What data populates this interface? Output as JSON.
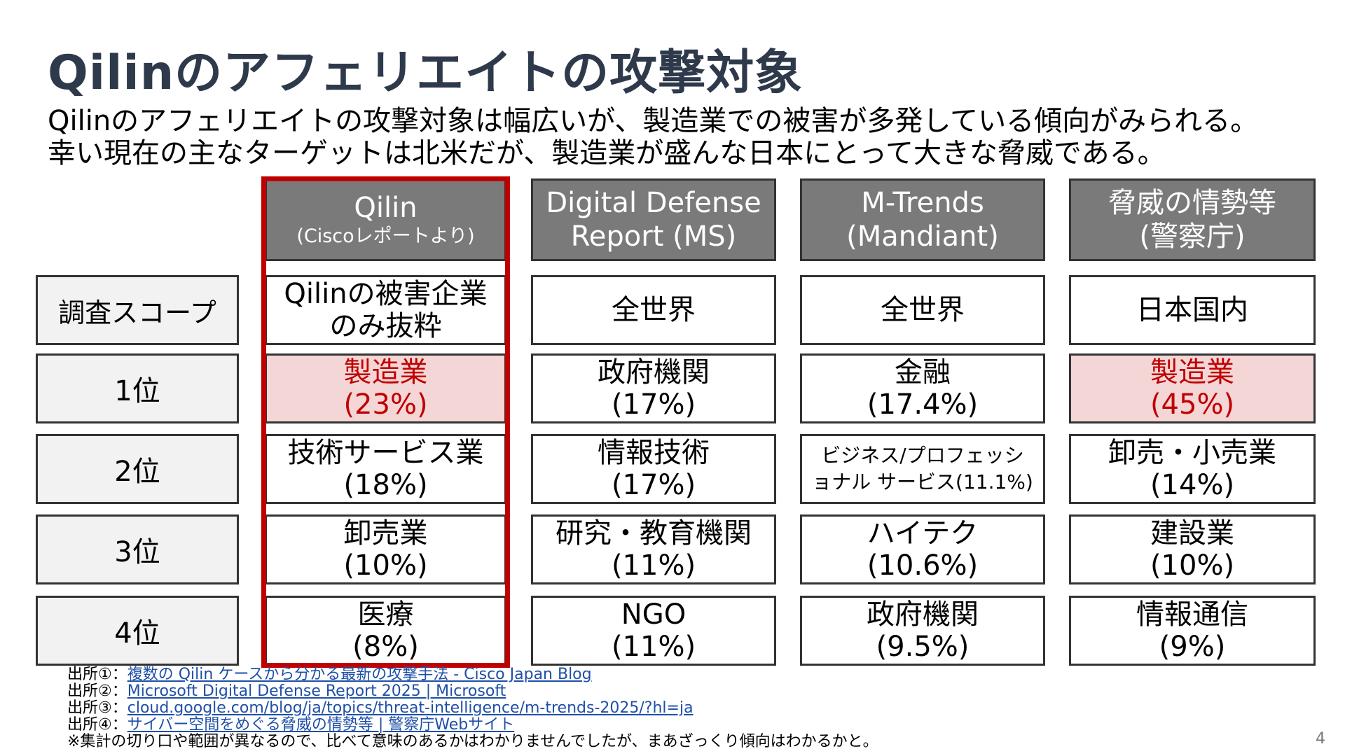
{
  "slide": {
    "title": "Qilinのアフェリエイトの攻撃対象",
    "subtitle_lines": [
      "Qilinのアフェリエイトの攻撃対象は幅広いが、製造業での被害が多発している傾向がみられる。",
      "幸い現在の主なターゲットは北米だが、製造業が盛んな日本にとって大きな脅威である。"
    ],
    "page_number": "4"
  },
  "table": {
    "row_labels": [
      "調査スコープ",
      "1位",
      "2位",
      "3位",
      "4位"
    ],
    "columns": [
      {
        "header_main": "Qilin",
        "header_sub": "(Ciscoレポートより)",
        "scope": [
          "Qilinの被害企業",
          "のみ抜粋"
        ],
        "ranks": [
          {
            "name": "製造業",
            "pct": "(23%)"
          },
          {
            "name": "技術サービス業",
            "pct": "(18%)"
          },
          {
            "name": "卸売業",
            "pct": "(10%)"
          },
          {
            "name": "医療",
            "pct": "(8%)"
          }
        ]
      },
      {
        "header_main": "Digital Defense",
        "header_sub": "Report (MS)",
        "scope": [
          "全世界"
        ],
        "ranks": [
          {
            "name": "政府機関",
            "pct": "(17%)"
          },
          {
            "name": "情報技術",
            "pct": "(17%)"
          },
          {
            "name": "研究・教育機関",
            "pct": "(11%)"
          },
          {
            "name": "NGO",
            "pct": "(11%)"
          }
        ]
      },
      {
        "header_main": "M-Trends",
        "header_sub": "(Mandiant)",
        "scope": [
          "全世界"
        ],
        "ranks": [
          {
            "name": "金融",
            "pct": "(17.4%)"
          },
          {
            "name": "ビジネス/プロフェッシ",
            "pct": "ョナル サービス(11.1%)"
          },
          {
            "name": "ハイテク",
            "pct": "(10.6%)"
          },
          {
            "name": "政府機関",
            "pct": "(9.5%)"
          }
        ]
      },
      {
        "header_main": "脅威の情勢等",
        "header_sub": "(警察庁)",
        "scope": [
          "日本国内"
        ],
        "ranks": [
          {
            "name": "製造業",
            "pct": "(45%)"
          },
          {
            "name": "卸売・小売業",
            "pct": "(14%)"
          },
          {
            "name": "建設業",
            "pct": "(10%)"
          },
          {
            "name": "情報通信",
            "pct": "(9%)"
          }
        ]
      }
    ]
  },
  "sources": [
    {
      "prefix": "出所①：",
      "link": "複数の Qilin ケースから分かる最新の攻撃手法 - Cisco Japan Blog"
    },
    {
      "prefix": "出所②：",
      "link": "Microsoft Digital Defense Report 2025 | Microsoft"
    },
    {
      "prefix": "出所③：",
      "link": "cloud.google.com/blog/ja/topics/threat-intelligence/m-trends-2025/?hl=ja"
    },
    {
      "prefix": "出所④：",
      "link": "サイバー空間をめぐる脅威の情勢等 | 警察庁Webサイト"
    }
  ],
  "note": "※集計の切り口や範囲が異なるので、比べて意味のあるかはわかりませんでしたが、まあざっくり傾向はわかるかと。",
  "colors": {
    "title": "#2e3a4b",
    "header_bg": "#7a7a7a",
    "highlight_bg": "#f4d6d6",
    "highlight_text": "#c00000",
    "frame": "#c00000",
    "link": "#1f4fa8"
  }
}
